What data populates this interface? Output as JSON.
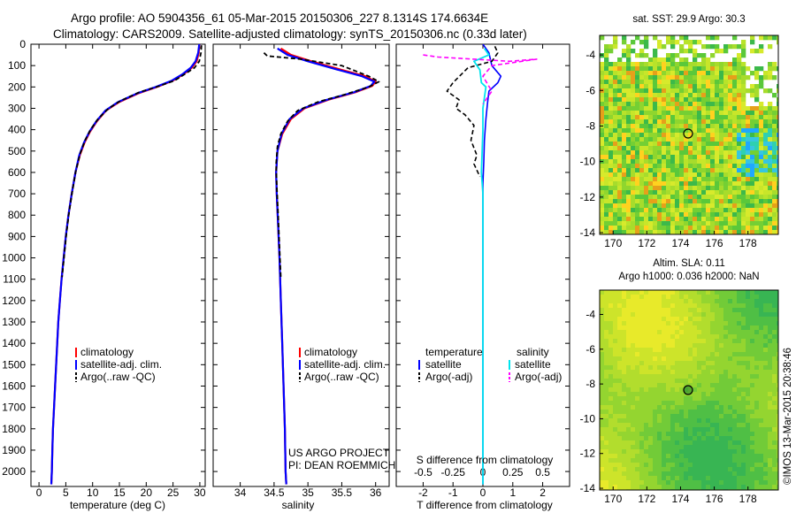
{
  "header": {
    "title_line1": "Argo profile: AO 5904356_61 05-Mar-2015 20150306_227 8.1314S 174.6634E",
    "title_line2": "Climatology: CARS2009. Satellite-adjusted climatology: synTS_20150306.nc (0.33d later)"
  },
  "colors": {
    "climatology": "#ff0000",
    "satellite": "#0000ff",
    "argo": "#000000",
    "sal_sat": "#00e5ee",
    "sal_argo": "#ff00ff"
  },
  "legend": {
    "climatology": "climatology",
    "satellite_adj": "satellite-adj. clim.",
    "argo": "Argo(..raw -QC)"
  },
  "diff_legend": {
    "temperature": "temperature",
    "salinity": "salinity",
    "satellite": "satellite",
    "argo_adj": "Argo(-adj)"
  },
  "project": {
    "line1": "US ARGO PROJECT",
    "line2": "PI: DEAN ROEMMICH"
  },
  "sst_map": {
    "title": "sat. SST: 29.9  Argo: 30.3"
  },
  "sla_map": {
    "title_line1": "Altim. SLA: 0.11",
    "title_line2": "Argo h1000: 0.036 h2000: NaN"
  },
  "side_label": "©IMOS 13-Mar-2015 20:38:46",
  "chart_data": [
    {
      "type": "line",
      "xlabel": "temperature (deg C)",
      "xlim": [
        -1.5,
        31
      ],
      "xticks": [
        "0",
        "5",
        "10",
        "15",
        "20",
        "25",
        "30"
      ],
      "ylim": [
        2070,
        0
      ],
      "yticks": [
        "0",
        "100",
        "200",
        "300",
        "400",
        "500",
        "600",
        "700",
        "800",
        "900",
        "1000",
        "1100",
        "1200",
        "1300",
        "1400",
        "1500",
        "1600",
        "1700",
        "1800",
        "1900",
        "2000"
      ],
      "series": [
        {
          "name": "climatology",
          "points": [
            [
              29.9,
              0
            ],
            [
              29.8,
              40
            ],
            [
              29.4,
              80
            ],
            [
              28.5,
              110
            ],
            [
              27,
              140
            ],
            [
              25,
              170
            ],
            [
              22,
              200
            ],
            [
              18.5,
              230
            ],
            [
              15,
              270
            ],
            [
              12.5,
              310
            ],
            [
              10.8,
              360
            ],
            [
              9.5,
              410
            ],
            [
              8.5,
              460
            ],
            [
              7.6,
              520
            ],
            [
              6.8,
              600
            ],
            [
              6.1,
              700
            ],
            [
              5.5,
              800
            ],
            [
              5,
              900
            ],
            [
              4.6,
              1000
            ],
            [
              4.2,
              1100
            ],
            [
              3.9,
              1200
            ],
            [
              3.6,
              1300
            ],
            [
              3.4,
              1400
            ],
            [
              3.2,
              1500
            ],
            [
              3,
              1600
            ],
            [
              2.8,
              1700
            ],
            [
              2.6,
              1800
            ],
            [
              2.5,
              1900
            ],
            [
              2.4,
              2000
            ],
            [
              2.3,
              2060
            ]
          ]
        },
        {
          "name": "satellite-adj. clim.",
          "points": [
            [
              29.9,
              0
            ],
            [
              29.7,
              40
            ],
            [
              29.2,
              80
            ],
            [
              28.3,
              110
            ],
            [
              26.8,
              140
            ],
            [
              24.8,
              170
            ],
            [
              21.8,
              200
            ],
            [
              18.3,
              230
            ],
            [
              14.8,
              270
            ],
            [
              12.4,
              310
            ],
            [
              10.7,
              360
            ],
            [
              9.4,
              410
            ],
            [
              8.4,
              460
            ],
            [
              7.5,
              520
            ],
            [
              6.8,
              600
            ],
            [
              6.1,
              700
            ],
            [
              5.5,
              800
            ],
            [
              5,
              900
            ],
            [
              4.6,
              1000
            ],
            [
              4.2,
              1100
            ],
            [
              3.9,
              1200
            ],
            [
              3.6,
              1300
            ],
            [
              3.4,
              1400
            ],
            [
              3.2,
              1500
            ],
            [
              3,
              1600
            ],
            [
              2.8,
              1700
            ],
            [
              2.6,
              1800
            ],
            [
              2.5,
              1900
            ],
            [
              2.4,
              2000
            ],
            [
              2.3,
              2060
            ]
          ]
        },
        {
          "name": "Argo(..raw -QC)",
          "points": [
            [
              30.3,
              5
            ],
            [
              30.2,
              40
            ],
            [
              29.9,
              80
            ],
            [
              29,
              110
            ],
            [
              27.2,
              140
            ],
            [
              25.3,
              170
            ],
            [
              22.5,
              195
            ],
            [
              18.7,
              225
            ],
            [
              15.2,
              265
            ],
            [
              13,
              300
            ],
            [
              11,
              350
            ],
            [
              9.6,
              400
            ],
            [
              8.6,
              450
            ],
            [
              7.7,
              510
            ],
            [
              6.9,
              590
            ],
            [
              6.2,
              690
            ],
            [
              5.6,
              790
            ],
            [
              5.1,
              890
            ],
            [
              4.7,
              990
            ],
            [
              4.3,
              1090
            ]
          ]
        }
      ]
    },
    {
      "type": "line",
      "xlabel": "salinity",
      "xlim": [
        33.6,
        36.2
      ],
      "xticks": [
        "34",
        "34.5",
        "35",
        "35.5",
        "36"
      ],
      "ylim": [
        2070,
        0
      ],
      "series": [
        {
          "name": "climatology",
          "points": [
            [
              34.6,
              20
            ],
            [
              34.75,
              50
            ],
            [
              35.05,
              80
            ],
            [
              35.5,
              120
            ],
            [
              35.85,
              150
            ],
            [
              36,
              175
            ],
            [
              35.95,
              195
            ],
            [
              35.7,
              225
            ],
            [
              35.3,
              260
            ],
            [
              34.95,
              300
            ],
            [
              34.75,
              350
            ],
            [
              34.62,
              420
            ],
            [
              34.55,
              500
            ],
            [
              34.53,
              600
            ],
            [
              34.54,
              700
            ],
            [
              34.56,
              850
            ],
            [
              34.58,
              1000
            ],
            [
              34.6,
              1200
            ],
            [
              34.62,
              1400
            ],
            [
              34.64,
              1600
            ],
            [
              34.66,
              1800
            ],
            [
              34.67,
              2000
            ],
            [
              34.68,
              2060
            ]
          ]
        },
        {
          "name": "satellite-adj. clim.",
          "points": [
            [
              34.55,
              20
            ],
            [
              34.7,
              50
            ],
            [
              35,
              80
            ],
            [
              35.45,
              120
            ],
            [
              35.8,
              150
            ],
            [
              35.98,
              175
            ],
            [
              35.93,
              195
            ],
            [
              35.68,
              225
            ],
            [
              35.28,
              260
            ],
            [
              34.93,
              300
            ],
            [
              34.73,
              350
            ],
            [
              34.61,
              420
            ],
            [
              34.55,
              500
            ],
            [
              34.53,
              600
            ],
            [
              34.54,
              700
            ],
            [
              34.56,
              850
            ],
            [
              34.58,
              1000
            ],
            [
              34.6,
              1200
            ],
            [
              34.62,
              1400
            ],
            [
              34.64,
              1600
            ],
            [
              34.66,
              1800
            ],
            [
              34.67,
              2000
            ],
            [
              34.68,
              2060
            ]
          ]
        },
        {
          "name": "Argo(..raw -QC)",
          "points": [
            [
              34.35,
              40
            ],
            [
              34.4,
              55
            ],
            [
              34.9,
              70
            ],
            [
              35.5,
              100
            ],
            [
              35.9,
              150
            ],
            [
              36.05,
              175
            ],
            [
              35.9,
              200
            ],
            [
              35.55,
              235
            ],
            [
              35.15,
              270
            ],
            [
              34.85,
              310
            ],
            [
              34.7,
              360
            ],
            [
              34.6,
              420
            ],
            [
              34.55,
              480
            ],
            [
              34.53,
              560
            ],
            [
              34.54,
              660
            ],
            [
              34.56,
              800
            ],
            [
              34.58,
              950
            ],
            [
              34.6,
              1090
            ]
          ]
        }
      ]
    },
    {
      "type": "line",
      "xlabel": "T difference from climatology",
      "xlabel_top": "S difference from climatology",
      "xlim": [
        -2.9,
        2.9
      ],
      "xticks": [
        "-2",
        "-1",
        "0",
        "1",
        "2"
      ],
      "top_xticks": [
        "-0.5",
        "-0.25",
        "0",
        "0.25",
        "0.5"
      ],
      "ylim": [
        2070,
        0
      ],
      "series": [
        {
          "name": "temperature satellite",
          "points": [
            [
              0,
              0
            ],
            [
              0.2,
              40
            ],
            [
              0.3,
              100
            ],
            [
              0.6,
              150
            ],
            [
              0.5,
              180
            ],
            [
              0.2,
              220
            ],
            [
              0.15,
              280
            ],
            [
              0.1,
              350
            ],
            [
              0.05,
              450
            ],
            [
              0.03,
              550
            ],
            [
              0,
              650
            ],
            [
              0,
              800
            ],
            [
              0,
              1000
            ],
            [
              0,
              2060
            ]
          ]
        },
        {
          "name": "temperature Argo(-adj)",
          "points": [
            [
              0.4,
              10
            ],
            [
              0.5,
              40
            ],
            [
              0.3,
              80
            ],
            [
              -0.5,
              110
            ],
            [
              -1,
              180
            ],
            [
              -1.2,
              220
            ],
            [
              -0.8,
              260
            ],
            [
              -0.9,
              300
            ],
            [
              -0.6,
              330
            ],
            [
              -0.3,
              380
            ],
            [
              -0.4,
              450
            ],
            [
              -0.2,
              520
            ],
            [
              -0.3,
              560
            ],
            [
              -0.1,
              620
            ]
          ]
        },
        {
          "name": "salinity satellite",
          "points": [
            [
              0.05,
              20
            ],
            [
              0.2,
              50
            ],
            [
              -0.3,
              80
            ],
            [
              -0.1,
              120
            ],
            [
              -0.05,
              180
            ],
            [
              0.1,
              200
            ],
            [
              0.05,
              250
            ],
            [
              0,
              300
            ],
            [
              0,
              400
            ],
            [
              -0.05,
              600
            ],
            [
              0,
              700
            ],
            [
              0,
              1000
            ],
            [
              0,
              2060
            ]
          ]
        },
        {
          "name": "salinity Argo(-adj)",
          "points": [
            [
              -2,
              50
            ],
            [
              -1.5,
              60
            ],
            [
              0.9,
              80
            ],
            [
              1.8,
              70
            ],
            [
              0.3,
              100
            ],
            [
              0,
              150
            ],
            [
              0.3,
              220
            ],
            [
              0,
              280
            ]
          ]
        }
      ]
    }
  ],
  "sst_axes": {
    "xticks": [
      "170",
      "172",
      "174",
      "176",
      "178"
    ],
    "yticks": [
      "-4",
      "-6",
      "-8",
      "-10",
      "-12",
      "-14"
    ]
  },
  "sla_axes": {
    "xticks": [
      "170",
      "172",
      "174",
      "176",
      "178"
    ],
    "yticks": [
      "-4",
      "-6",
      "-8",
      "-10",
      "-12",
      "-14"
    ]
  }
}
